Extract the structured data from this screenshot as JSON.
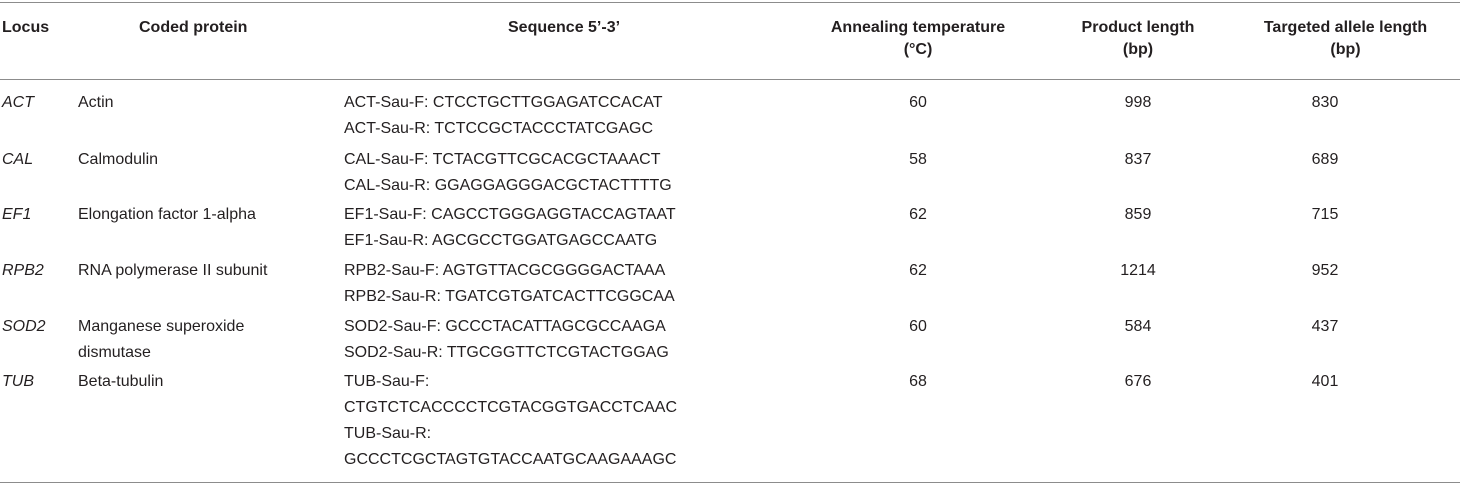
{
  "headers": {
    "locus": "Locus",
    "coded_protein": "Coded protein",
    "sequence": "Sequence 5’-3’",
    "annealing_line1": "Annealing temperature",
    "annealing_line2": "(°C)",
    "product_line1": "Product length",
    "product_line2": "(bp)",
    "allele_line1": "Targeted allele length",
    "allele_line2": "(bp)"
  },
  "rows": [
    {
      "locus": "ACT",
      "protein": "Actin",
      "protein2": "",
      "seq_lines": [
        "ACT-Sau-F: CTCCTGCTTGGAGATCCACAT",
        "ACT-Sau-R: TCTCCGCTACCCTATCGAGC"
      ],
      "annealing": "60",
      "product": "998",
      "allele": "830"
    },
    {
      "locus": "CAL",
      "protein": "Calmodulin",
      "protein2": "",
      "seq_lines": [
        "CAL-Sau-F: TCTACGTTCGCACGCTAAACT",
        "CAL-Sau-R: GGAGGAGGGACGCTACTTTTG"
      ],
      "annealing": "58",
      "product": "837",
      "allele": "689"
    },
    {
      "locus": "EF1",
      "protein": "Elongation factor 1-alpha",
      "protein2": "",
      "seq_lines": [
        "EF1-Sau-F: CAGCCTGGGAGGTACCAGTAAT",
        "EF1-Sau-R: AGCGCCTGGATGAGCCAATG"
      ],
      "annealing": "62",
      "product": "859",
      "allele": "715"
    },
    {
      "locus": "RPB2",
      "protein": "RNA polymerase II subunit",
      "protein2": "",
      "seq_lines": [
        "RPB2-Sau-F: AGTGTTACGCGGGGACTAAA",
        "RPB2-Sau-R: TGATCGTGATCACTTCGGCAA"
      ],
      "annealing": "62",
      "product": "1214",
      "allele": "952"
    },
    {
      "locus": "SOD2",
      "protein": "Manganese superoxide",
      "protein2": "dismutase",
      "seq_lines": [
        "SOD2-Sau-F: GCCCTACATTAGCGCCAAGA",
        "SOD2-Sau-R: TTGCGGTTCTCGTACTGGAG"
      ],
      "annealing": "60",
      "product": "584",
      "allele": "437"
    },
    {
      "locus": "TUB",
      "protein": "Beta-tubulin",
      "protein2": "",
      "seq_lines": [
        "TUB-Sau-F:",
        "CTGTCTCACCCCTCGTACGGTGACCTCAAC",
        "TUB-Sau-R:",
        "GCCCTCGCTAGTGTACCAATGCAAGAAAGC"
      ],
      "annealing": "68",
      "product": "676",
      "allele": "401"
    }
  ]
}
